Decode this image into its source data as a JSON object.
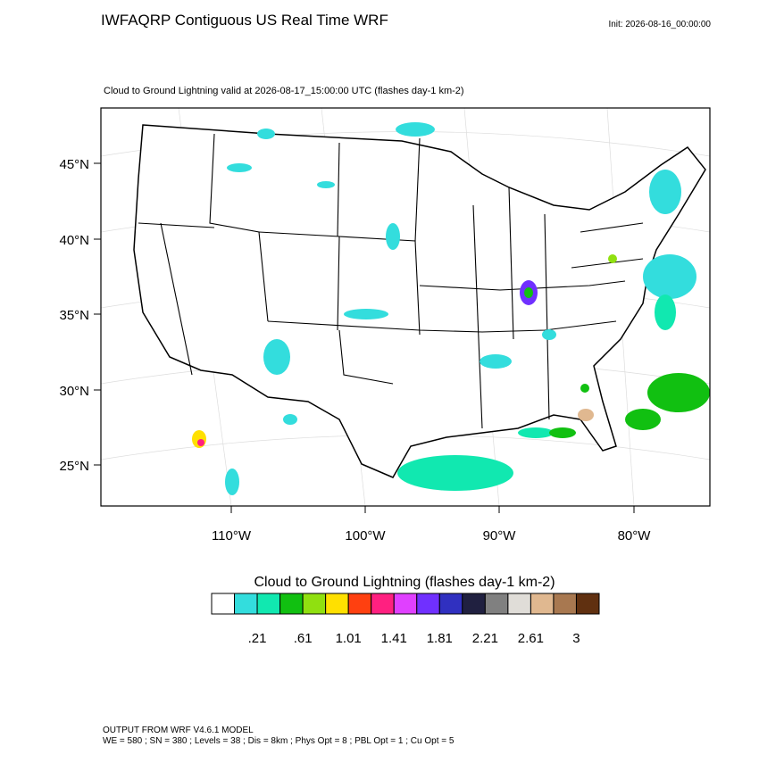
{
  "header": {
    "title": "IWFAQRP Contiguous US Real Time WRF",
    "init": "Init: 2026-08-16_00:00:00",
    "subtitle": "Cloud to Ground Lightning valid at 2026-08-17_15:00:00 UTC   (flashes day-1 km-2)"
  },
  "map": {
    "lat_labels": [
      "45°N",
      "40°N",
      "35°N",
      "30°N",
      "25°N"
    ],
    "lon_labels": [
      "110°W",
      "100°W",
      "90°W",
      "80°W"
    ]
  },
  "colorbar": {
    "title": "Cloud to Ground Lightning  (flashes day-1 km-2)",
    "colors": [
      "#ffffff",
      "#33dddd",
      "#11e8b0",
      "#11c011",
      "#90e010",
      "#ffe000",
      "#ff4010",
      "#ff2080",
      "#e040ff",
      "#7030ff",
      "#3030c0",
      "#202040",
      "#808080",
      "#e0ddd8",
      "#e0b890",
      "#a87850",
      "#603010"
    ],
    "labels": [
      ".21",
      ".61",
      "1.01",
      "1.41",
      "1.81",
      "2.21",
      "2.61",
      "3"
    ]
  },
  "footer": {
    "line1": "OUTPUT FROM WRF V4.6.1 MODEL",
    "line2": "WE = 580 ; SN = 380 ; Levels = 38 ; Dis = 8km ; Phys Opt = 8 ; PBL Opt = 1 ; Cu Opt = 5"
  }
}
